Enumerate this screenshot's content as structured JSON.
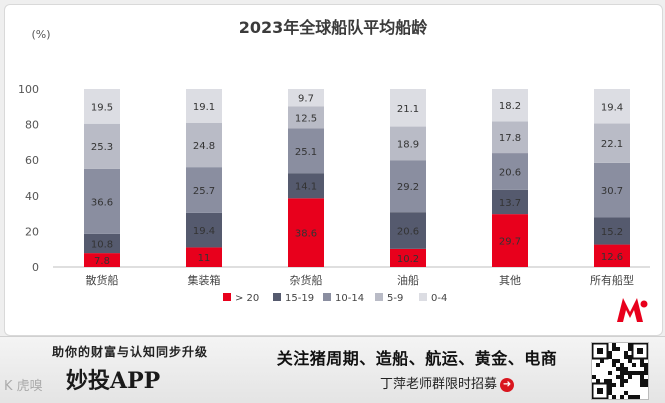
{
  "chart_data": {
    "type": "bar",
    "stacked": true,
    "title": "2023年全球船队平均船龄",
    "ylabel": "(%)",
    "ylim": [
      0,
      100
    ],
    "yticks": [
      0,
      20,
      40,
      60,
      80,
      100
    ],
    "grid": false,
    "legend_position": "bottom",
    "categories": [
      "散货船",
      "集装箱",
      "杂货船",
      "油船",
      "其他",
      "所有船型"
    ],
    "series": [
      {
        "name": "> 20",
        "color": "#e8001c",
        "label_color": "#ffffff",
        "values": [
          7.8,
          11,
          38.6,
          10.2,
          29.7,
          12.6
        ]
      },
      {
        "name": "15-19",
        "color": "#555a6e",
        "label_color": "#ffffff",
        "values": [
          10.8,
          19.4,
          14.1,
          20.6,
          13.7,
          15.2
        ]
      },
      {
        "name": "10-14",
        "color": "#8a8ea0",
        "label_color": "#333333",
        "values": [
          36.6,
          25.7,
          25.1,
          29.2,
          20.6,
          30.7
        ]
      },
      {
        "name": "5-9",
        "color": "#b9bbc6",
        "label_color": "#333333",
        "values": [
          25.3,
          24.8,
          12.5,
          18.9,
          17.8,
          22.1
        ]
      },
      {
        "name": "0-4",
        "color": "#dcdde3",
        "label_color": "#333333",
        "values": [
          19.5,
          19.1,
          9.7,
          21.1,
          18.2,
          19.4
        ]
      }
    ]
  },
  "banner": {
    "slogan": "助你的财富与认知同步升级",
    "app_name": "妙投APP",
    "watermark": "K 虎嗅",
    "topics": "关注猪周期、造船、航运、黄金、电商",
    "contact": "丁萍老师群限时招募",
    "arrow_icon": "arrow-right-circle-icon"
  },
  "colors": {
    "accent": "#e8001c",
    "card_background": "#ffffff",
    "page_background": "#efefef"
  }
}
